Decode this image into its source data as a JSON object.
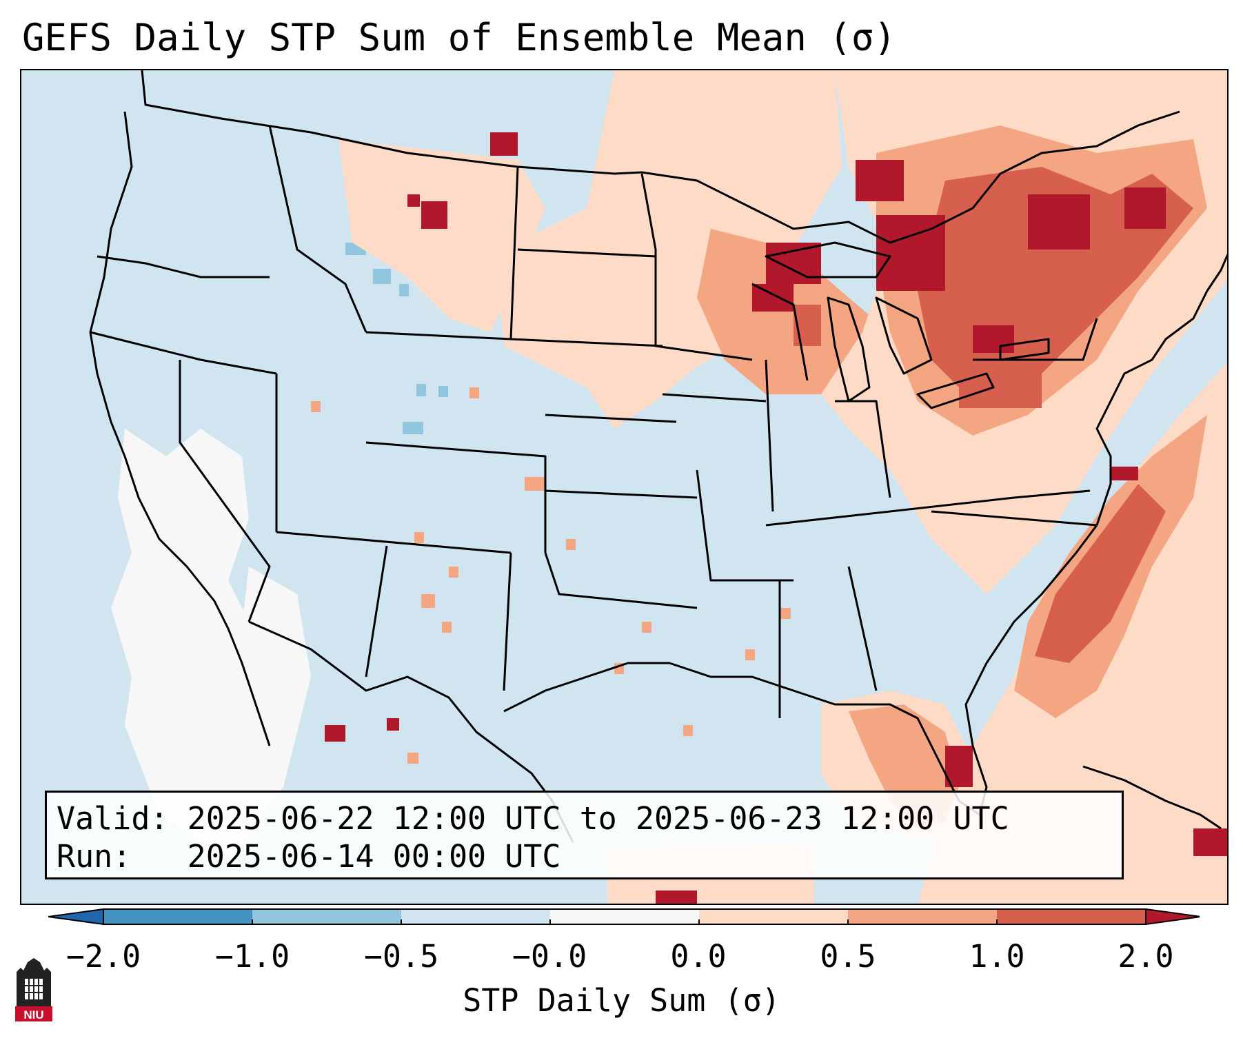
{
  "title": "GEFS Daily STP Sum of Ensemble Mean (σ)",
  "info": {
    "valid_line": "Valid: 2025-06-22 12:00 UTC to 2025-06-23 12:00 UTC",
    "run_line": "Run:   2025-06-14 00:00 UTC"
  },
  "colorbar": {
    "label": "STP Daily Sum (σ)",
    "ticks": [
      "−2.0",
      "−1.0",
      "−0.5",
      "−0.0",
      "0.0",
      "0.5",
      "1.0",
      "2.0"
    ],
    "colors": [
      "#4393c3",
      "#92c5de",
      "#d1e5f0",
      "#f7f7f7",
      "#fddbc7",
      "#f4a582",
      "#d6604d"
    ],
    "extend_low_color": "#2166ac",
    "extend_high_color": "#b2182b"
  },
  "colors": {
    "neg_strong": "#4393c3",
    "neg_mid": "#92c5de",
    "background": "#d1e5f0",
    "neutral": "#f7f7f7",
    "pos_light": "#fddbc7",
    "pos_mid": "#f4a582",
    "pos_high": "#d6604d",
    "pos_max": "#b2182b"
  },
  "logo": {
    "text": "NIU",
    "icon": "niu-building-icon"
  }
}
